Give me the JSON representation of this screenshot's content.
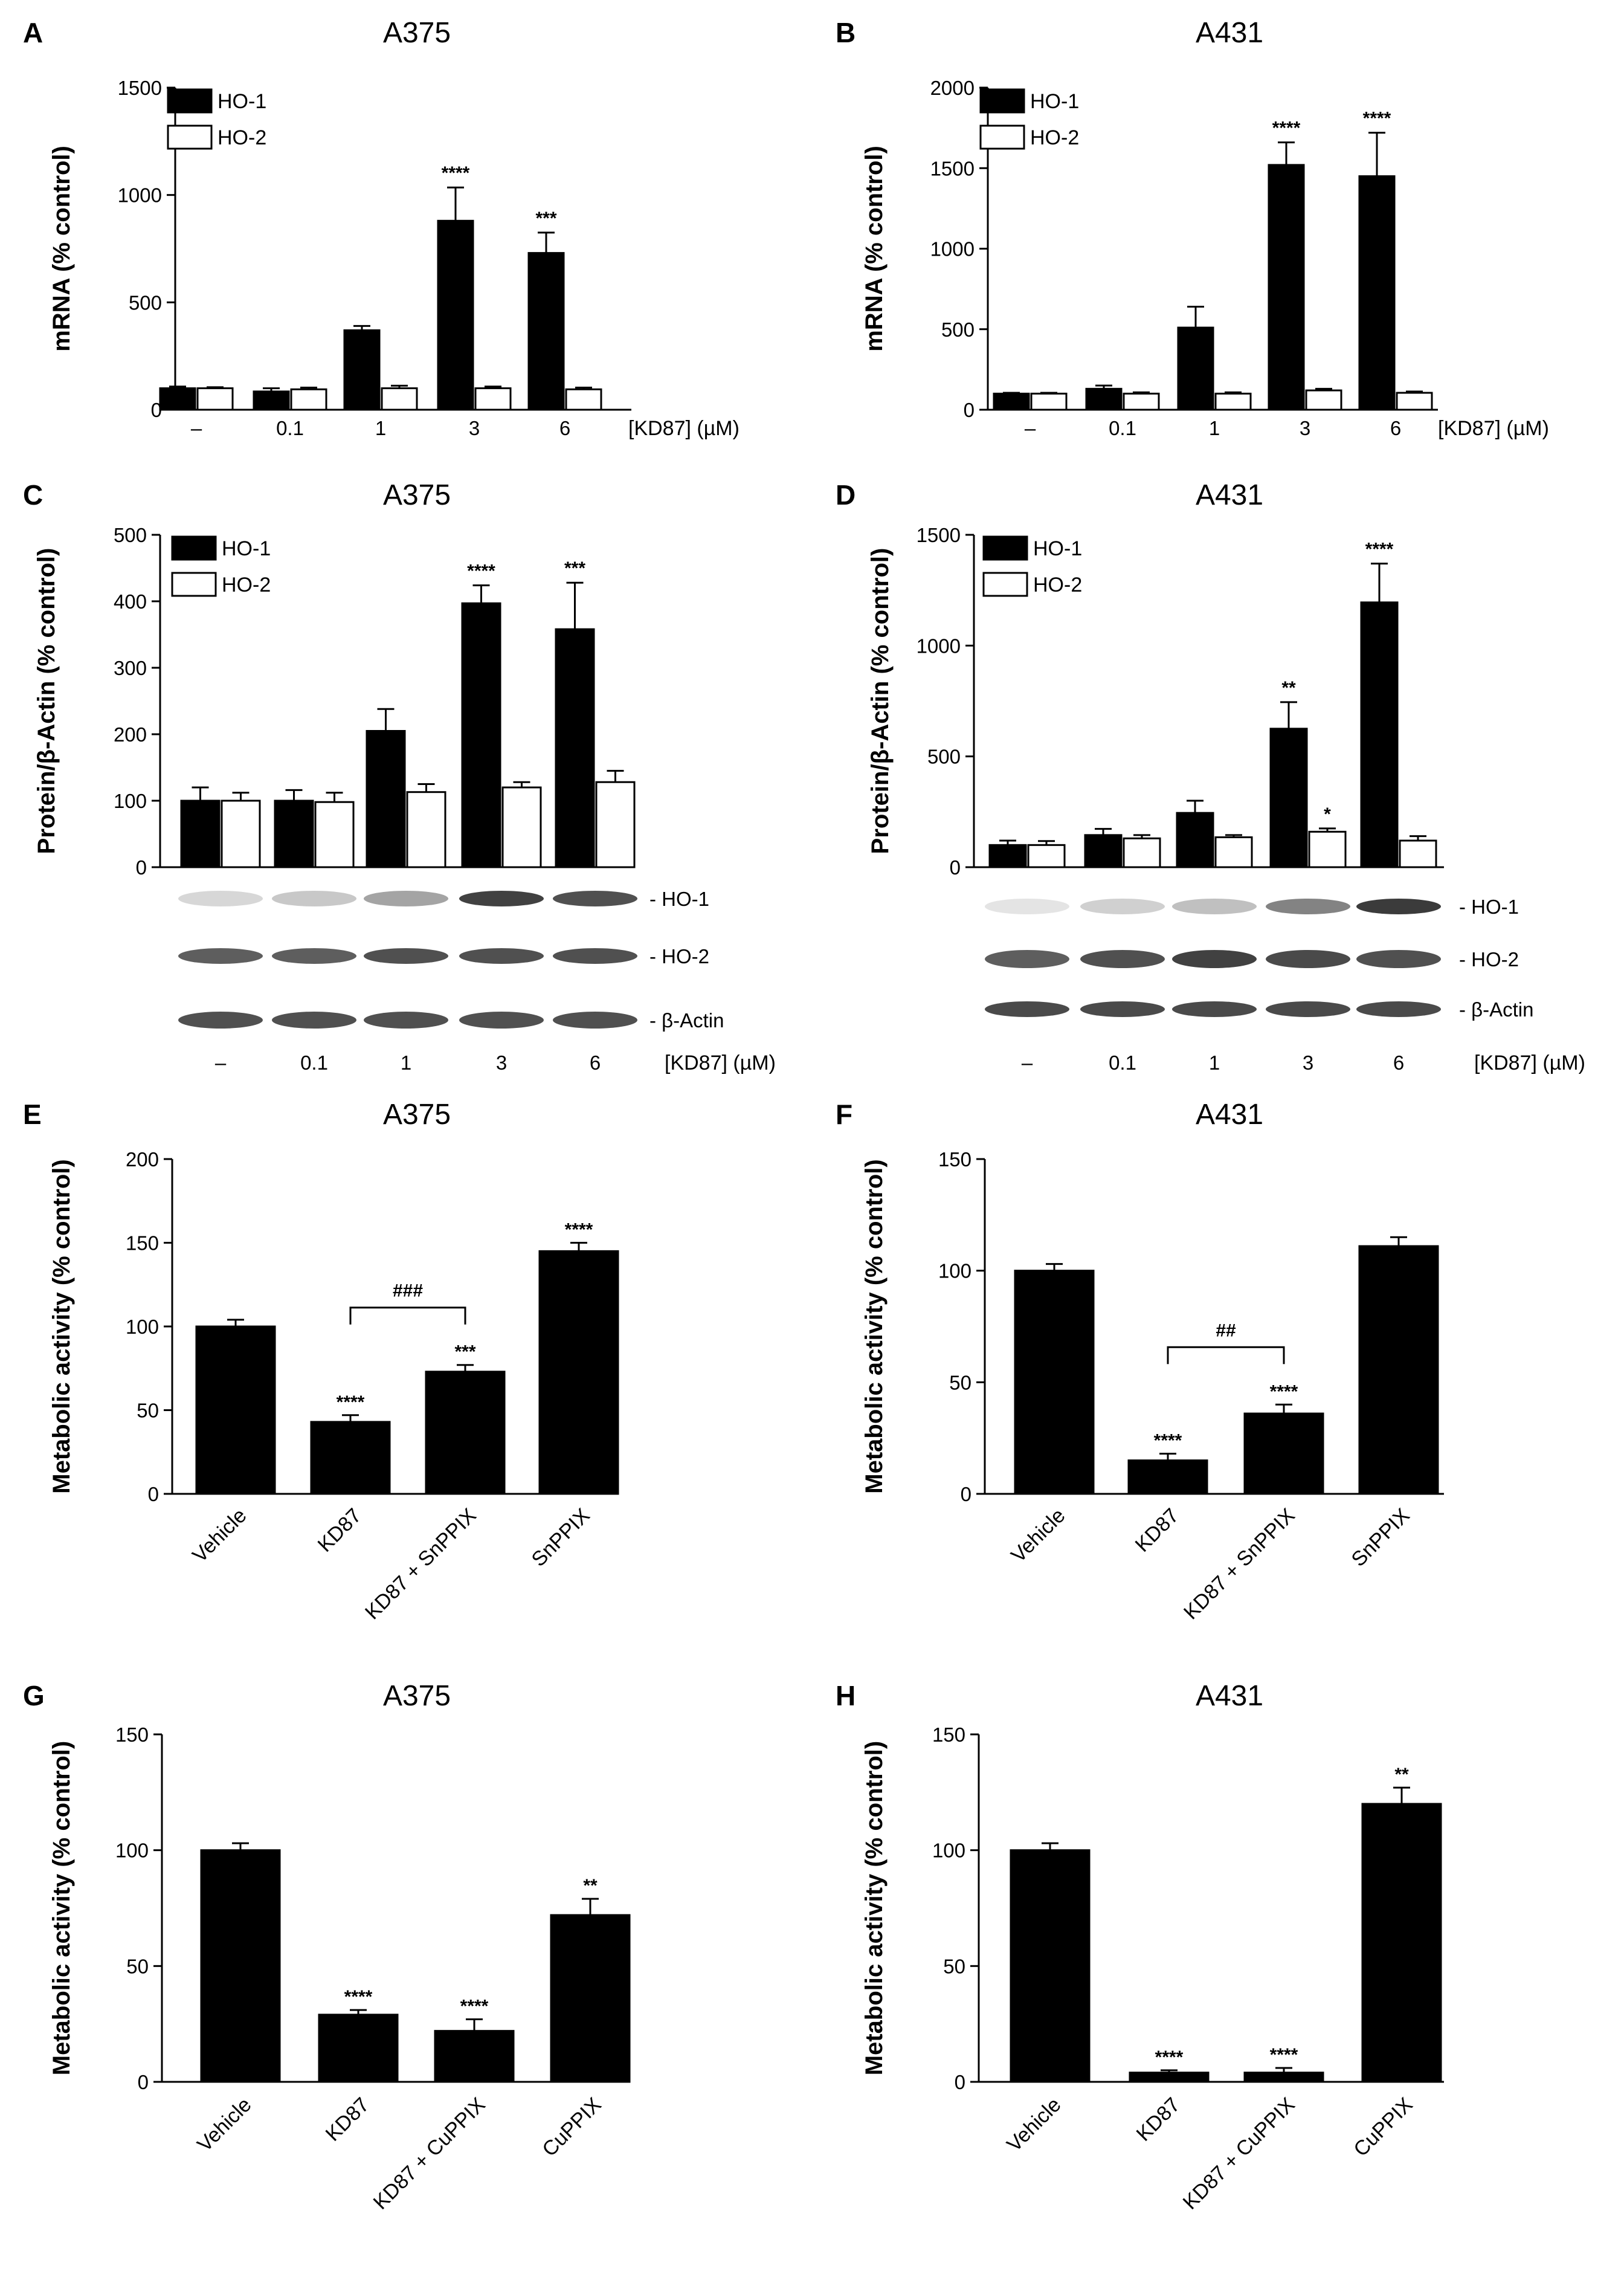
{
  "chart_data": [
    {
      "id": "A",
      "type": "bar",
      "panel_label": "A",
      "title": "A375",
      "ylabel": "mRNA (% control)",
      "ylim": [
        0,
        1500
      ],
      "yticks": [
        0,
        500,
        1000,
        1500
      ],
      "categories": [
        "–",
        "0.1",
        "1",
        "3",
        "6"
      ],
      "unit_label": "[KD87] (µM)",
      "legend": "top-left",
      "series": [
        {
          "name": "HO-1",
          "fill": "#000000",
          "values": [
            100,
            85,
            370,
            880,
            730
          ],
          "errors": [
            8,
            15,
            20,
            155,
            95
          ],
          "sig": [
            "",
            "",
            "",
            "****",
            "***"
          ]
        },
        {
          "name": "HO-2",
          "fill": "#ffffff",
          "values": [
            100,
            95,
            100,
            100,
            95
          ],
          "errors": [
            5,
            8,
            12,
            8,
            8
          ],
          "sig": [
            "",
            "",
            "",
            "",
            ""
          ]
        }
      ]
    },
    {
      "id": "B",
      "type": "bar",
      "panel_label": "B",
      "title": "A431",
      "ylabel": "mRNA (% control)",
      "ylim": [
        0,
        2000
      ],
      "yticks": [
        0,
        500,
        1000,
        1500,
        2000
      ],
      "categories": [
        "–",
        "0.1",
        "1",
        "3",
        "6"
      ],
      "unit_label": "[KD87] (µM)",
      "legend": "top-left",
      "series": [
        {
          "name": "HO-1",
          "fill": "#000000",
          "values": [
            100,
            130,
            510,
            1520,
            1450
          ],
          "errors": [
            5,
            20,
            130,
            140,
            270
          ],
          "sig": [
            "",
            "",
            "",
            "****",
            "****"
          ]
        },
        {
          "name": "HO-2",
          "fill": "#ffffff",
          "values": [
            100,
            100,
            100,
            120,
            105
          ],
          "errors": [
            5,
            8,
            8,
            10,
            8
          ],
          "sig": [
            "",
            "",
            "",
            "",
            ""
          ]
        }
      ]
    },
    {
      "id": "C",
      "type": "bar",
      "panel_label": "C",
      "title": "A375",
      "ylabel": "Protein/β-Actin (% control)",
      "ylim": [
        0,
        500
      ],
      "yticks": [
        0,
        100,
        200,
        300,
        400,
        500
      ],
      "categories": [
        "–",
        "0.1",
        "1",
        "3",
        "6"
      ],
      "unit_label": "[KD87] (µM)",
      "legend": "top-left",
      "series": [
        {
          "name": "HO-1",
          "fill": "#000000",
          "values": [
            100,
            100,
            205,
            397,
            358
          ],
          "errors": [
            20,
            16,
            33,
            27,
            70
          ],
          "sig": [
            "",
            "",
            "",
            "****",
            "***"
          ]
        },
        {
          "name": "HO-2",
          "fill": "#ffffff",
          "values": [
            100,
            98,
            113,
            120,
            128
          ],
          "errors": [
            12,
            14,
            12,
            8,
            17
          ],
          "sig": [
            "",
            "",
            "",
            "",
            ""
          ]
        }
      ],
      "blot_labels": [
        "- HO-1",
        "- HO-2",
        "- β-Actin"
      ]
    },
    {
      "id": "D",
      "type": "bar",
      "panel_label": "D",
      "title": "A431",
      "ylabel": "Protein/β-Actin (% control)",
      "ylim": [
        0,
        1500
      ],
      "yticks": [
        0,
        500,
        1000,
        1500
      ],
      "categories": [
        "–",
        "0.1",
        "1",
        "3",
        "6"
      ],
      "unit_label": "[KD87] (µM)",
      "legend": "top-left",
      "series": [
        {
          "name": "HO-1",
          "fill": "#000000",
          "values": [
            100,
            145,
            245,
            625,
            1195
          ],
          "errors": [
            20,
            28,
            55,
            120,
            175
          ],
          "sig": [
            "",
            "",
            "",
            "**",
            "****"
          ]
        },
        {
          "name": "HO-2",
          "fill": "#ffffff",
          "values": [
            100,
            130,
            135,
            160,
            120
          ],
          "errors": [
            18,
            15,
            10,
            15,
            20
          ],
          "sig": [
            "",
            "",
            "",
            "*",
            ""
          ]
        }
      ],
      "blot_labels": [
        "- HO-1",
        "- HO-2",
        "- β-Actin"
      ]
    },
    {
      "id": "E",
      "type": "bar",
      "panel_label": "E",
      "title": "A375",
      "ylabel": "Metabolic activity (% control)",
      "ylim": [
        0,
        200
      ],
      "yticks": [
        0,
        50,
        100,
        150,
        200
      ],
      "categories": [
        "Vehicle",
        "KD87",
        "KD87 + SnPPIX",
        "SnPPIX"
      ],
      "values": [
        100,
        43,
        73,
        145
      ],
      "errors": [
        4,
        4,
        4,
        5
      ],
      "sig": [
        "",
        "****",
        "***",
        "****"
      ],
      "bracket": {
        "from": 1,
        "to": 2,
        "label": "###"
      }
    },
    {
      "id": "F",
      "type": "bar",
      "panel_label": "F",
      "title": "A431",
      "ylabel": "Metabolic activity (% control)",
      "ylim": [
        0,
        150
      ],
      "yticks": [
        0,
        50,
        100,
        150
      ],
      "categories": [
        "Vehicle",
        "KD87",
        "KD87 + SnPPIX",
        "SnPPIX"
      ],
      "values": [
        100,
        15,
        36,
        111
      ],
      "errors": [
        3,
        3,
        4,
        4
      ],
      "sig": [
        "",
        "****",
        "****",
        ""
      ],
      "bracket": {
        "from": 1,
        "to": 2,
        "label": "##"
      }
    },
    {
      "id": "G",
      "type": "bar",
      "panel_label": "G",
      "title": "A375",
      "ylabel": "Metabolic activity (% control)",
      "ylim": [
        0,
        150
      ],
      "yticks": [
        0,
        50,
        100,
        150
      ],
      "categories": [
        "Vehicle",
        "KD87",
        "KD87 + CuPPIX",
        "CuPPIX"
      ],
      "values": [
        100,
        29,
        22,
        72
      ],
      "errors": [
        3,
        2,
        5,
        7
      ],
      "sig": [
        "",
        "****",
        "****",
        "**"
      ]
    },
    {
      "id": "H",
      "type": "bar",
      "panel_label": "H",
      "title": "A431",
      "ylabel": "Metabolic activity (% control)",
      "ylim": [
        0,
        150
      ],
      "yticks": [
        0,
        50,
        100,
        150
      ],
      "categories": [
        "Vehicle",
        "KD87",
        "KD87 + CuPPIX",
        "CuPPIX"
      ],
      "values": [
        100,
        4,
        4,
        120
      ],
      "errors": [
        3,
        1,
        2,
        7
      ],
      "sig": [
        "",
        "****",
        "****",
        "**"
      ]
    }
  ]
}
